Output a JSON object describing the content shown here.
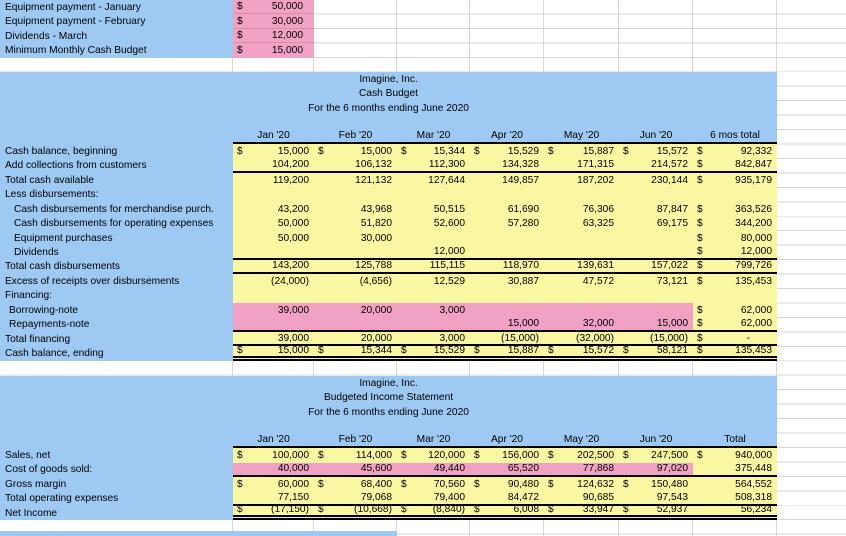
{
  "colors": {
    "header_fill": "#9DC9F3",
    "input_fill": "#F1A1C3",
    "data_fill": "#FAF7A2",
    "gridline": "#D6D6D6"
  },
  "assumptions": {
    "rows": [
      {
        "label": "Equipment payment - January",
        "pink": true,
        "cells": [
          "$|50,000"
        ]
      },
      {
        "label": "Equipment payment - February",
        "pink": true,
        "cells": [
          "$|30,000"
        ]
      },
      {
        "label": "Dividends - March",
        "pink": true,
        "cells": [
          "$|12,000"
        ]
      },
      {
        "label": "Minimum Monthly Cash Budget",
        "pink": true,
        "cells": [
          "$|15,000"
        ]
      }
    ]
  },
  "cash_budget": {
    "title": "Imagine, Inc.",
    "subtitle": "Cash Budget",
    "period": "For the 6 months ending June 2020",
    "columns": [
      "Jan '20",
      "Feb '20",
      "Mar '20",
      "Apr '20",
      "May '20",
      "Jun '20",
      "6 mos total"
    ],
    "rows": [
      {
        "label": "Cash balance, beginning",
        "cells": [
          "$|15,000",
          "$|15,000",
          "$|15,344",
          "$|15,529",
          "$|15,887",
          "$|15,572",
          "$|92,332"
        ]
      },
      {
        "label": "Add collections from customers",
        "border": "thick",
        "cells": [
          "|104,200",
          "|106,132",
          "|112,300",
          "|134,328",
          "|171,315",
          "|214,572",
          "$|842,847"
        ]
      },
      {
        "label": "Total cash available",
        "cells": [
          "|119,200",
          "|121,132",
          "|127,644",
          "|149,857",
          "|187,202",
          "|230,144",
          "$|935,179"
        ]
      },
      {
        "label": "Less disbursements:",
        "cells": [
          "",
          "",
          "",
          "",
          "",
          "",
          ""
        ]
      },
      {
        "label": "Cash disbursements for merchandise purch.",
        "indent": 1,
        "cells": [
          "|43,200",
          "|43,968",
          "|50,515",
          "|61,690",
          "|76,306",
          "|87,847",
          "$|363,526"
        ]
      },
      {
        "label": "Cash disbursements for operating expenses",
        "indent": 1,
        "cells": [
          "|50,000",
          "|51,820",
          "|52,600",
          "|57,280",
          "|63,325",
          "|69,175",
          "$|344,200"
        ]
      },
      {
        "label": "Equipment purchases",
        "indent": 1,
        "cells": [
          "|50,000",
          "|30,000",
          "",
          "",
          "",
          "",
          "$|80,000"
        ]
      },
      {
        "label": "Dividends",
        "indent": 1,
        "border": "thick",
        "cells": [
          "",
          "",
          "|12,000",
          "",
          "",
          "",
          "$|12,000"
        ]
      },
      {
        "label": "Total cash disbursements",
        "border": "thick",
        "cells": [
          "|143,200",
          "|125,788",
          "|115,115",
          "|118,970",
          "|139,631",
          "|157,022",
          "$|799,726"
        ]
      },
      {
        "label": "Excess of receipts over disbursements",
        "cells": [
          "|(24,000)",
          "|(4,656)",
          "|12,529",
          "|30,887",
          "|47,572",
          "|73,121",
          "$|135,453"
        ]
      },
      {
        "label": "Financing:",
        "cells": [
          "",
          "",
          "",
          "",
          "",
          "",
          ""
        ]
      },
      {
        "label": "Borrowing-note",
        "indent": 2,
        "pink": true,
        "cells": [
          "|39,000",
          "|20,000",
          "|3,000",
          "",
          "",
          "",
          "$|62,000"
        ]
      },
      {
        "label": "Repayments-note",
        "indent": 2,
        "pink": true,
        "border": "thick",
        "cells": [
          "",
          "",
          "",
          "|15,000",
          "|32,000",
          "|15,000",
          "$|62,000"
        ]
      },
      {
        "label": "Total financing",
        "border": "thick",
        "cells": [
          "|39,000",
          "|20,000",
          "|3,000",
          "|(15,000)",
          "|(32,000)",
          "|(15,000)",
          "$|-"
        ]
      },
      {
        "label": "Cash balance, ending",
        "border": "double",
        "underline": true,
        "cells": [
          "$|15,000",
          "$|15,344",
          "$|15,529",
          "$|15,887",
          "$|15,572",
          "$|58,121",
          "$|135,453"
        ]
      }
    ]
  },
  "income_statement": {
    "title": "Imagine, Inc.",
    "subtitle": "Budgeted Income Statement",
    "period": "For the 6 months ending June 2020",
    "columns": [
      "Jan '20",
      "Feb '20",
      "Mar '20",
      "Apr '20",
      "May '20",
      "Jun '20",
      "Total"
    ],
    "rows": [
      {
        "label": "Sales, net",
        "cells": [
          "$|100,000",
          "$|114,000",
          "$|120,000",
          "$|156,000",
          "$|202,500",
          "$|247,500",
          "$|940,000"
        ]
      },
      {
        "label": "Cost of goods sold:",
        "pink": true,
        "border": "thick",
        "cells": [
          "|40,000",
          "|45,600",
          "|49,440",
          "|65,520",
          "|77,868",
          "|97,020",
          "|375,448"
        ]
      },
      {
        "label": "Gross margin",
        "cells": [
          "$|60,000",
          "$|68,400",
          "$|70,560",
          "$|90,480",
          "$|124,632",
          "$|150,480",
          "|564,552"
        ]
      },
      {
        "label": "Total operating expenses",
        "border": "thick",
        "cells": [
          "|77,150",
          "|79,068",
          "|79,400",
          "|84,472",
          "|90,685",
          "|97,543",
          "|508,318"
        ]
      },
      {
        "label": "Net Income",
        "border": "double",
        "underline": true,
        "cells": [
          "$|(17,150)",
          "$|(10,668)",
          "$|(8,840)",
          "$|6,008",
          "$|33,947",
          "$|52,937",
          "|56,234"
        ]
      }
    ]
  }
}
